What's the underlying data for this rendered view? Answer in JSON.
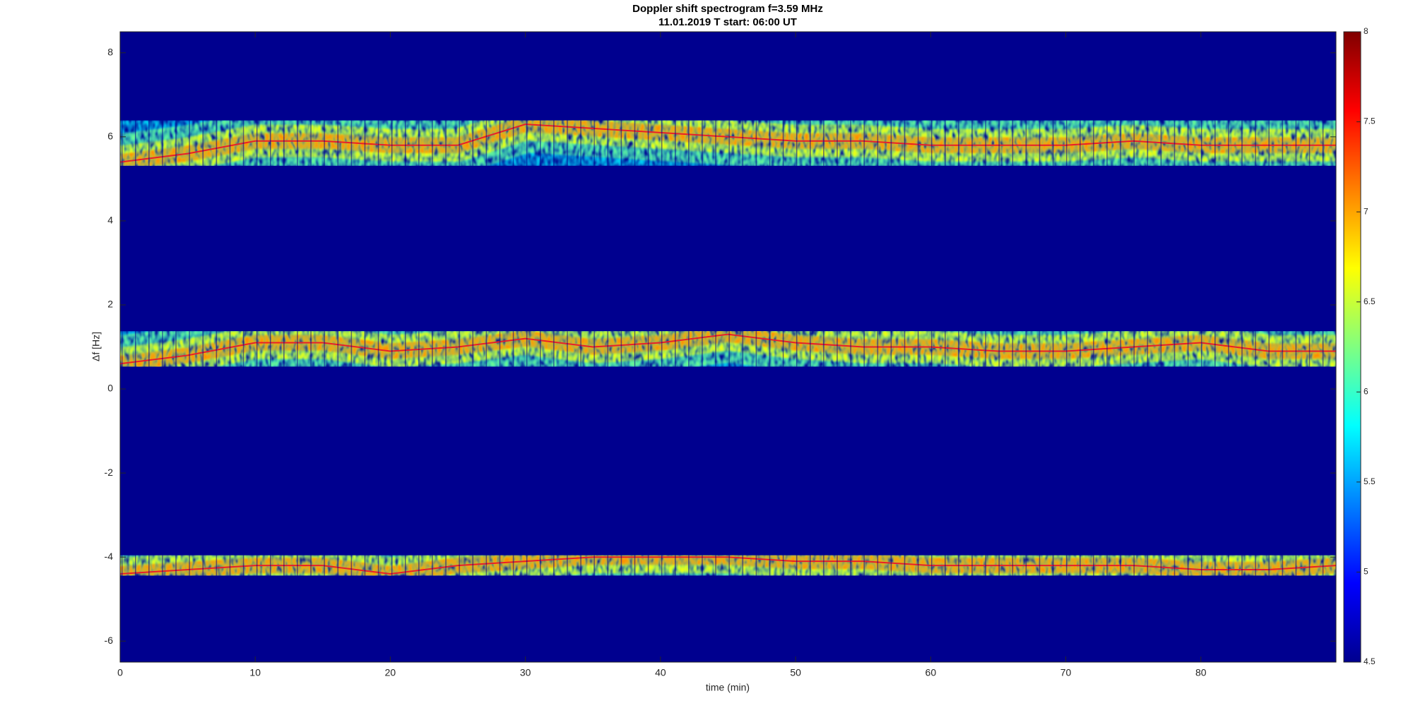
{
  "chart_data": {
    "type": "spectrogram",
    "title": "Doppler shift spectrogram f=3.59 MHz",
    "subtitle": "11.01.2019   T start: 06:00 UT",
    "xlabel": "time (min)",
    "ylabel": "Δf [Hz]",
    "x": [
      0,
      5,
      10,
      15,
      20,
      25,
      30,
      35,
      40,
      45,
      50,
      55,
      60,
      65,
      70,
      75,
      80,
      85,
      90
    ],
    "series": [
      {
        "color": "#e8202a",
        "values": [
          5.4,
          5.6,
          5.9,
          5.9,
          5.8,
          5.8,
          6.3,
          6.2,
          6.1,
          6.0,
          5.9,
          5.9,
          5.8,
          5.8,
          5.8,
          5.9,
          5.8,
          5.8,
          5.8
        ]
      },
      {
        "color": "#e8202a",
        "values": [
          0.6,
          0.8,
          1.1,
          1.1,
          0.9,
          1.0,
          1.2,
          1.0,
          1.1,
          1.3,
          1.1,
          1.0,
          1.0,
          0.9,
          0.9,
          1.0,
          1.1,
          0.9,
          0.9
        ]
      },
      {
        "color": "#e8202a",
        "values": [
          -4.4,
          -4.3,
          -4.2,
          -4.2,
          -4.4,
          -4.2,
          -4.1,
          -4.0,
          -4.0,
          -4.0,
          -4.1,
          -4.1,
          -4.2,
          -4.2,
          -4.2,
          -4.2,
          -4.3,
          -4.3,
          -4.2
        ]
      }
    ],
    "xlim": [
      0,
      90
    ],
    "xticks": [
      0,
      10,
      20,
      30,
      40,
      50,
      60,
      70,
      80
    ],
    "ylim": [
      -6.5,
      8.5
    ],
    "yticks": [
      -6,
      -4,
      -2,
      0,
      2,
      4,
      6,
      8
    ],
    "colormap": "jet",
    "background": "#00008f",
    "clim": [
      4.5,
      8
    ],
    "cticks": [
      4.5,
      5,
      5.5,
      6,
      6.5,
      7,
      7.5,
      8
    ]
  }
}
